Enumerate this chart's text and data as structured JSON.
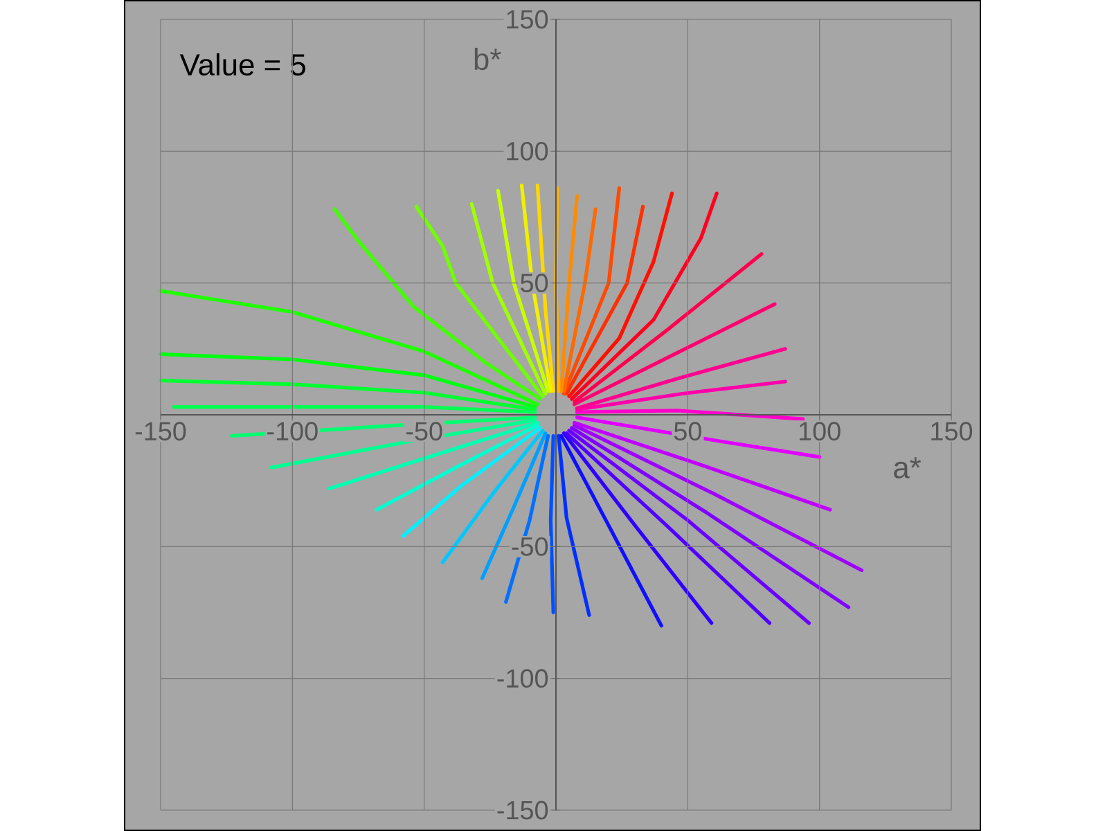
{
  "chart_data": {
    "type": "line",
    "xlabel": "a*",
    "ylabel": "b*",
    "annotations": [
      "Value = 5"
    ],
    "xlim": [
      -150,
      150
    ],
    "ylim": [
      -150,
      150
    ],
    "xticks": [
      -150,
      -100,
      -50,
      50,
      100,
      150
    ],
    "yticks": [
      -150,
      -100,
      -50,
      50,
      100,
      150
    ],
    "grid": true,
    "marker": "none",
    "line_style": "solid",
    "series": [
      {
        "color": "#ff00cc",
        "x": [
          8,
          46,
          93.7
        ],
        "values": [
          1,
          1.6,
          -1.6
        ]
      },
      {
        "color": "#ff00aa",
        "x": [
          8,
          48,
          87
        ],
        "values": [
          2,
          8,
          12.6
        ]
      },
      {
        "color": "#ff0090",
        "x": [
          8,
          47,
          87
        ],
        "values": [
          2.5,
          14,
          25
        ]
      },
      {
        "color": "#ff0070",
        "x": [
          7,
          45,
          83
        ],
        "values": [
          4,
          23,
          42
        ]
      },
      {
        "color": "#ff0050",
        "x": [
          7,
          42,
          78
        ],
        "values": [
          5,
          32,
          61
        ]
      },
      {
        "color": "#ff0020",
        "x": [
          6,
          37,
          55,
          61
        ],
        "values": [
          6,
          36,
          67,
          84
        ]
      },
      {
        "color": "#ff1000",
        "x": [
          5,
          24,
          37,
          44
        ],
        "values": [
          7,
          29,
          58,
          84
        ]
      },
      {
        "color": "#ff3000",
        "x": [
          4,
          27,
          33
        ],
        "values": [
          8,
          50,
          79
        ]
      },
      {
        "color": "#ff4a00",
        "x": [
          3,
          20,
          24
        ],
        "values": [
          8,
          50,
          86
        ]
      },
      {
        "color": "#ff6a00",
        "x": [
          3,
          11,
          15
        ],
        "values": [
          9,
          50,
          78
        ]
      },
      {
        "color": "#ff8c00",
        "x": [
          2,
          5,
          8
        ],
        "values": [
          9,
          50,
          83
        ]
      },
      {
        "color": "#ffb000",
        "x": [
          1,
          0,
          0.5
        ],
        "values": [
          9,
          50,
          86
        ]
      },
      {
        "color": "#ffd800",
        "x": [
          -1,
          -4,
          -7
        ],
        "values": [
          9,
          40,
          87
        ]
      },
      {
        "color": "#f0f000",
        "x": [
          -2,
          -9,
          -13
        ],
        "values": [
          9,
          50,
          87
        ]
      },
      {
        "color": "#c8ff00",
        "x": [
          -3,
          -16,
          -22
        ],
        "values": [
          9,
          50,
          85
        ]
      },
      {
        "color": "#a0ff00",
        "x": [
          -4,
          -24,
          -32
        ],
        "values": [
          8,
          50,
          80
        ]
      },
      {
        "color": "#70ff00",
        "x": [
          -5,
          -38,
          -43,
          -53
        ],
        "values": [
          7,
          50,
          64,
          79
        ]
      },
      {
        "color": "#40ff00",
        "x": [
          -6,
          -27,
          -54,
          -75,
          -84
        ],
        "values": [
          6,
          20,
          41,
          66,
          78
        ]
      },
      {
        "color": "#20ff00",
        "x": [
          -7,
          -50,
          -100,
          -150
        ],
        "values": [
          4,
          24,
          39,
          47
        ]
      },
      {
        "color": "#00ff10",
        "x": [
          -8,
          -50,
          -100,
          -150
        ],
        "values": [
          3,
          15,
          21,
          23
        ]
      },
      {
        "color": "#00ff30",
        "x": [
          -8,
          -50,
          -100,
          -150
        ],
        "values": [
          2,
          8.4,
          11.6,
          13
        ]
      },
      {
        "color": "#00ff50",
        "x": [
          -8,
          -50,
          -100,
          -145
        ],
        "values": [
          1,
          3,
          3,
          3
        ]
      },
      {
        "color": "#00ff70",
        "x": [
          -8,
          -60,
          -123
        ],
        "values": [
          -1,
          -4,
          -8
        ]
      },
      {
        "color": "#00ff90",
        "x": [
          -8,
          -55,
          -108
        ],
        "values": [
          -2,
          -10,
          -20
        ]
      },
      {
        "color": "#00ffb0",
        "x": [
          -7,
          -45,
          -86
        ],
        "values": [
          -3,
          -15,
          -28
        ]
      },
      {
        "color": "#00ffd0",
        "x": [
          -7,
          -38,
          -68
        ],
        "values": [
          -4,
          -20,
          -36
        ]
      },
      {
        "color": "#00f0ff",
        "x": [
          -6,
          -36,
          -58
        ],
        "values": [
          -5,
          -27,
          -46
        ]
      },
      {
        "color": "#00c8ff",
        "x": [
          -5,
          -24,
          -43
        ],
        "values": [
          -6,
          -30,
          -56
        ]
      },
      {
        "color": "#00a0ff",
        "x": [
          -4,
          -16,
          -28
        ],
        "values": [
          -7,
          -35,
          -62
        ]
      },
      {
        "color": "#0070ff",
        "x": [
          -3,
          -10,
          -19
        ],
        "values": [
          -8,
          -40,
          -71
        ]
      },
      {
        "color": "#0050ff",
        "x": [
          -1,
          -2,
          -1
        ],
        "values": [
          -8,
          -40,
          -75
        ]
      },
      {
        "color": "#0030ff",
        "x": [
          1,
          4,
          12.6
        ],
        "values": [
          -8,
          -39,
          -76
        ]
      },
      {
        "color": "#1010ff",
        "x": [
          2,
          20,
          40
        ],
        "values": [
          -8,
          -42,
          -80
        ]
      },
      {
        "color": "#3000ff",
        "x": [
          3,
          30,
          59
        ],
        "values": [
          -7,
          -42,
          -79
        ]
      },
      {
        "color": "#5000ff",
        "x": [
          4,
          42,
          81
        ],
        "values": [
          -7,
          -42,
          -79
        ]
      },
      {
        "color": "#6a00ff",
        "x": [
          5,
          50,
          96
        ],
        "values": [
          -6,
          -40,
          -79
        ]
      },
      {
        "color": "#8000ff",
        "x": [
          6,
          57,
          111
        ],
        "values": [
          -5,
          -37,
          -73
        ]
      },
      {
        "color": "#a000ff",
        "x": [
          7,
          60,
          116
        ],
        "values": [
          -4,
          -30,
          -59
        ]
      },
      {
        "color": "#c000ff",
        "x": [
          7,
          55,
          104
        ],
        "values": [
          -3,
          -19,
          -36
        ]
      },
      {
        "color": "#e000ff",
        "x": [
          8,
          62,
          100
        ],
        "values": [
          -1,
          -10,
          -16
        ]
      }
    ]
  }
}
